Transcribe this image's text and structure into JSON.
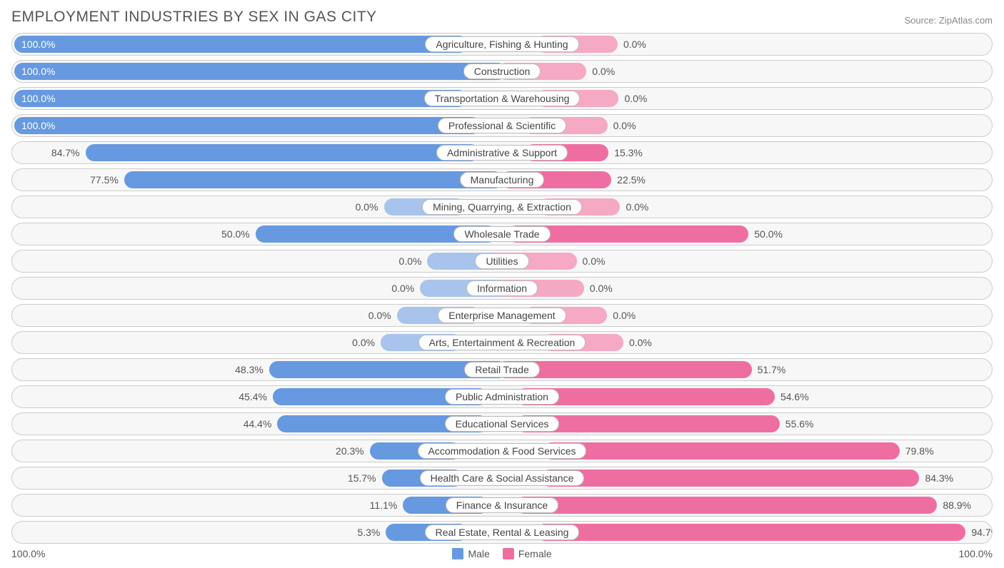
{
  "title": "EMPLOYMENT INDUSTRIES BY SEX IN GAS CITY",
  "source": "Source: ZipAtlas.com",
  "chart": {
    "type": "diverging-bar",
    "male_color_strong": "#6699e0",
    "male_color_weak": "#a8c4ec",
    "female_color_strong": "#ef6ea2",
    "female_color_weak": "#f5a9c4",
    "row_background": "#f7f7f7",
    "row_border": "#cccccc",
    "label_pill_bg": "#ffffff",
    "label_pill_border": "#bbbbbb",
    "min_bar_pct": 18,
    "rows": [
      {
        "label": "Agriculture, Fishing & Hunting",
        "male": 100.0,
        "female": 0.0
      },
      {
        "label": "Construction",
        "male": 100.0,
        "female": 0.0
      },
      {
        "label": "Transportation & Warehousing",
        "male": 100.0,
        "female": 0.0
      },
      {
        "label": "Professional & Scientific",
        "male": 100.0,
        "female": 0.0
      },
      {
        "label": "Administrative & Support",
        "male": 84.7,
        "female": 15.3
      },
      {
        "label": "Manufacturing",
        "male": 77.5,
        "female": 22.5
      },
      {
        "label": "Mining, Quarrying, & Extraction",
        "male": 0.0,
        "female": 0.0
      },
      {
        "label": "Wholesale Trade",
        "male": 50.0,
        "female": 50.0
      },
      {
        "label": "Utilities",
        "male": 0.0,
        "female": 0.0
      },
      {
        "label": "Information",
        "male": 0.0,
        "female": 0.0
      },
      {
        "label": "Enterprise Management",
        "male": 0.0,
        "female": 0.0
      },
      {
        "label": "Arts, Entertainment & Recreation",
        "male": 0.0,
        "female": 0.0
      },
      {
        "label": "Retail Trade",
        "male": 48.3,
        "female": 51.7
      },
      {
        "label": "Public Administration",
        "male": 45.4,
        "female": 54.6
      },
      {
        "label": "Educational Services",
        "male": 44.4,
        "female": 55.6
      },
      {
        "label": "Accommodation & Food Services",
        "male": 20.3,
        "female": 79.8
      },
      {
        "label": "Health Care & Social Assistance",
        "male": 15.7,
        "female": 84.3
      },
      {
        "label": "Finance & Insurance",
        "male": 11.1,
        "female": 88.9
      },
      {
        "label": "Real Estate, Rental & Leasing",
        "male": 5.3,
        "female": 94.7
      }
    ]
  },
  "axis": {
    "left": "100.0%",
    "right": "100.0%"
  },
  "legend": {
    "male": "Male",
    "female": "Female"
  }
}
